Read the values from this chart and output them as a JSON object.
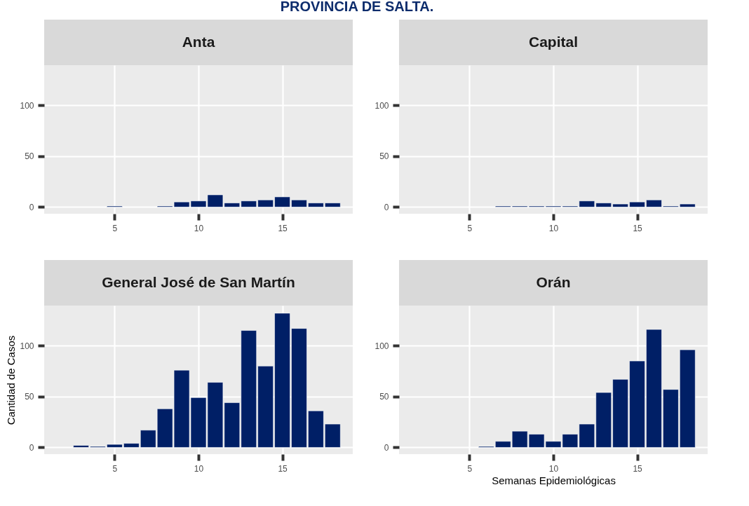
{
  "chart_data": [
    {
      "type": "bar",
      "title": "Anta",
      "annotations": [
        "PROVINCIA DE SALTA."
      ],
      "x": [
        5,
        8,
        9,
        10,
        11,
        12,
        13,
        14,
        15,
        16,
        17,
        18
      ],
      "values": [
        1,
        1,
        5,
        6,
        12,
        4,
        6,
        7,
        10,
        7,
        4,
        4
      ],
      "color": "#001f66",
      "xlim": [
        0.8,
        19.2
      ],
      "ylim": [
        -6.6,
        139.5
      ],
      "xticks": [
        5,
        10,
        15
      ],
      "yticks": [
        0,
        50,
        100
      ],
      "grid": true
    },
    {
      "type": "bar",
      "title": "Capital",
      "x": [
        7,
        8,
        9,
        10,
        11,
        12,
        13,
        14,
        15,
        16,
        17,
        18
      ],
      "values": [
        1,
        1,
        1,
        1,
        1,
        6,
        4,
        3,
        5,
        7,
        1,
        3
      ],
      "color": "#001f66",
      "xlim": [
        0.8,
        19.2
      ],
      "ylim": [
        -6.6,
        139.5
      ],
      "xticks": [
        5,
        10,
        15
      ],
      "yticks": [
        0,
        50,
        100
      ],
      "grid": true
    },
    {
      "type": "bar",
      "title": "General José de San Martín",
      "ylabel": "Cantidad de Casos",
      "x": [
        3,
        4,
        5,
        6,
        7,
        8,
        9,
        10,
        11,
        12,
        13,
        14,
        15,
        16,
        17,
        18
      ],
      "values": [
        2,
        1,
        3,
        4,
        17,
        38,
        76,
        49,
        64,
        44,
        115,
        80,
        132,
        117,
        36,
        23
      ],
      "color": "#001f66",
      "xlim": [
        0.8,
        19.2
      ],
      "ylim": [
        -6.6,
        139.5
      ],
      "xticks": [
        5,
        10,
        15
      ],
      "yticks": [
        0,
        50,
        100
      ],
      "grid": true
    },
    {
      "type": "bar",
      "title": "Orán",
      "xlabel": "Semanas Epidemiológicas",
      "x": [
        6,
        7,
        8,
        9,
        10,
        11,
        12,
        13,
        14,
        15,
        16,
        17,
        18
      ],
      "values": [
        1,
        6,
        16,
        13,
        6,
        13,
        23,
        54,
        67,
        85,
        116,
        57,
        96
      ],
      "color": "#001f66",
      "xlim": [
        0.8,
        19.2
      ],
      "ylim": [
        -6.6,
        139.5
      ],
      "xticks": [
        5,
        10,
        15
      ],
      "yticks": [
        0,
        50,
        100
      ],
      "grid": true
    }
  ]
}
